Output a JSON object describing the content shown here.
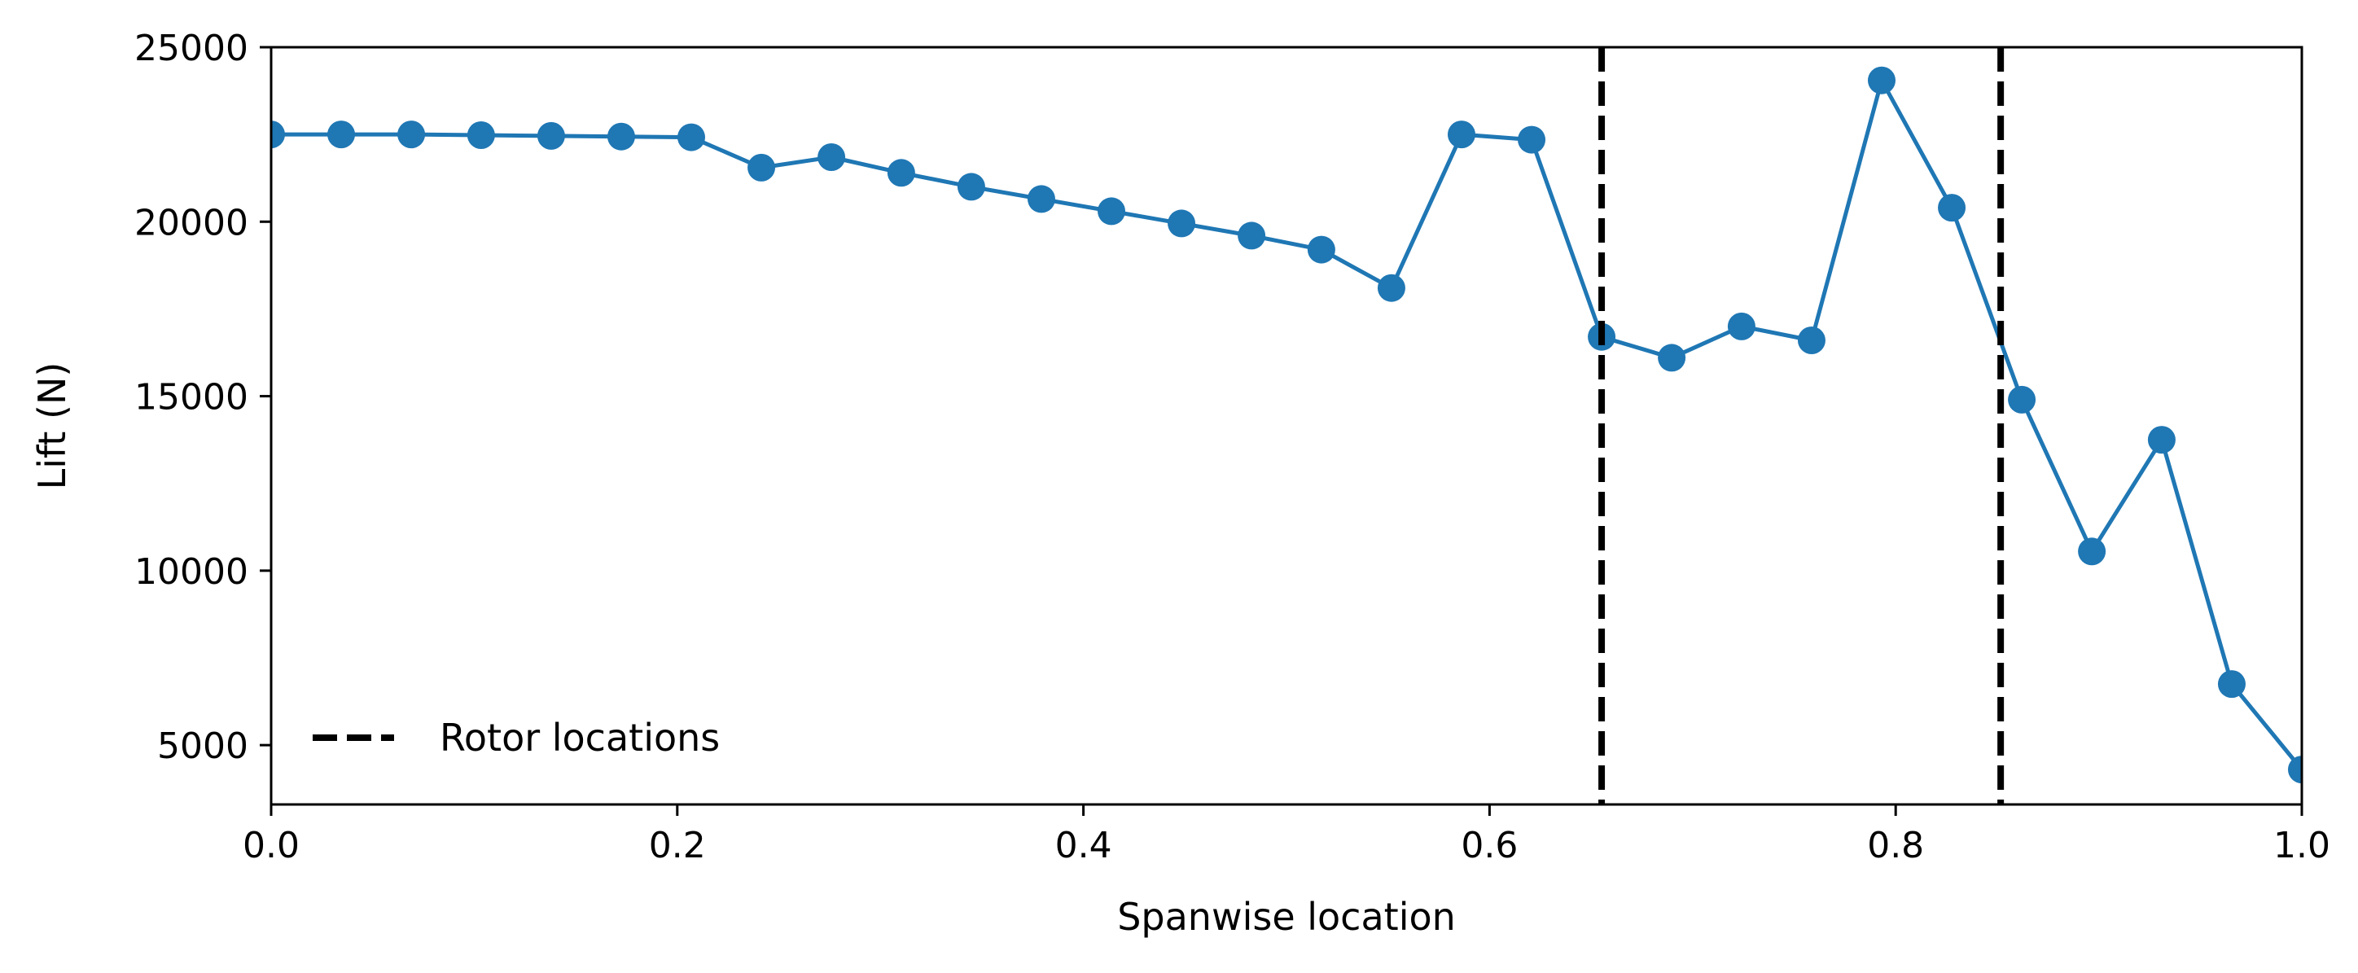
{
  "chart_data": {
    "type": "line",
    "title": "",
    "xlabel": "Spanwise location",
    "ylabel": "Lift (N)",
    "xlim": [
      0.0,
      1.0
    ],
    "ylim": [
      3300,
      25000
    ],
    "x_ticks": [
      "0.0",
      "0.2",
      "0.4",
      "0.6",
      "0.8",
      "1.0"
    ],
    "y_ticks": [
      "5000",
      "10000",
      "15000",
      "20000",
      "25000"
    ],
    "grid": false,
    "legend_position": "lower-left",
    "series": [
      {
        "color": "#1f77b4",
        "marker": "circle",
        "x": [
          0.0,
          0.0345,
          0.069,
          0.1034,
          0.1379,
          0.1724,
          0.2069,
          0.2414,
          0.2759,
          0.3103,
          0.3448,
          0.3793,
          0.4138,
          0.4483,
          0.4828,
          0.5172,
          0.5517,
          0.5862,
          0.6207,
          0.6552,
          0.6897,
          0.7241,
          0.7586,
          0.7931,
          0.8276,
          0.8621,
          0.8966,
          0.931,
          0.9655,
          1.0
        ],
        "y": [
          22500,
          22500,
          22500,
          22480,
          22460,
          22440,
          22420,
          21550,
          21850,
          21400,
          21000,
          20650,
          20300,
          19950,
          19600,
          19200,
          18100,
          22500,
          22350,
          16700,
          16100,
          17000,
          16600,
          24050,
          20400,
          14900,
          10550,
          13750,
          6750,
          4300
        ]
      }
    ],
    "reference_lines": {
      "name": "Rotor locations",
      "style": "dashed",
      "color": "#000000",
      "x": [
        0.6552,
        0.8517
      ]
    }
  }
}
